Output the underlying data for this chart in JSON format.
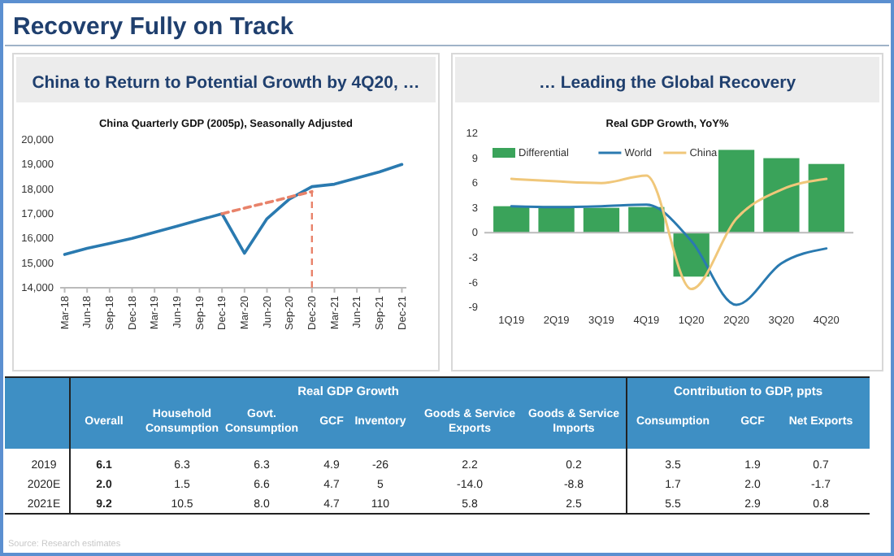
{
  "chart_data": [
    {
      "type": "line",
      "subtitle": "China to Return to Potential  Growth by 4Q20, …",
      "title": "China Quarterly GDP (2005p), Seasonally Adjusted",
      "annotations": [
        "Recovery Fully on Track"
      ],
      "categories": [
        "Mar-18",
        "Jun-18",
        "Sep-18",
        "Dec-18",
        "Mar-19",
        "Jun-19",
        "Sep-19",
        "Dec-19",
        "Mar-20",
        "Jun-20",
        "Sep-20",
        "Dec-20",
        "Mar-21",
        "Jun-21",
        "Sep-21",
        "Dec-21"
      ],
      "series": [
        {
          "color": "#2a7ab0",
          "values": [
            15350,
            15600,
            15800,
            16000,
            16250,
            16500,
            16750,
            17000,
            15400,
            16800,
            17600,
            18100,
            18200,
            18450,
            18700,
            19000
          ]
        },
        {
          "color": "#e8826a",
          "line_style": "dashed",
          "values": [
            null,
            null,
            null,
            null,
            null,
            null,
            null,
            17000,
            17230,
            17450,
            17680,
            17900,
            null,
            null,
            null,
            null
          ]
        }
      ],
      "ylim": [
        14000,
        20000
      ],
      "yticks": [
        {
          "value": 14000,
          "label": "14,000"
        },
        {
          "value": 15000,
          "label": "15,000"
        },
        {
          "value": 16000,
          "label": "16,000"
        },
        {
          "value": 17000,
          "label": "17,000"
        },
        {
          "value": 18000,
          "label": "18,000"
        },
        {
          "value": 19000,
          "label": "19,000"
        },
        {
          "value": 20000,
          "label": "20,000"
        }
      ],
      "ref_lines": [
        {
          "axis": "x",
          "value": "Dec-20",
          "color": "#e8826a",
          "line_style": "dashed"
        }
      ]
    },
    {
      "type": "bar",
      "subtitle": "… Leading the Global Recovery",
      "title": "Real GDP Growth, YoY%",
      "categories": [
        "1Q19",
        "2Q19",
        "3Q19",
        "4Q19",
        "1Q20",
        "2Q20",
        "3Q20",
        "4Q20"
      ],
      "series": [
        {
          "name": "Differential",
          "color": "#3aa35a",
          "values": [
            3.2,
            3.2,
            3.0,
            3.1,
            -5.3,
            10.0,
            9.0,
            8.3
          ]
        },
        {
          "name": "World",
          "type": "line",
          "color": "#2a7ab0",
          "values": [
            3.2,
            3.1,
            3.2,
            3.4,
            -1.0,
            -8.7,
            -3.7,
            -1.9
          ]
        },
        {
          "name": "China",
          "type": "line",
          "color": "#f0c77a",
          "values": [
            6.5,
            6.2,
            6.0,
            6.9,
            -6.8,
            1.7,
            5.2,
            6.5
          ]
        }
      ],
      "ylim": [
        -9,
        12
      ],
      "yticks": [
        -9,
        -6,
        -3,
        0,
        3,
        6,
        9,
        12
      ],
      "legend": "top left"
    },
    {
      "type": "other",
      "categories": [
        "Overall",
        "Household Consumption",
        "Govt. Consumption",
        "GCF",
        "Inventory",
        "Goods & Service Exports",
        "Goods & Service Imports",
        "Consumption",
        "GCF",
        "Net Exports"
      ],
      "y_categories": [
        "2019",
        "2020E",
        "2021E"
      ],
      "cell_labels": [
        [
          "6.1",
          "6.3",
          "6.3",
          "4.9",
          "-26",
          "2.2",
          "0.2",
          "3.5",
          "1.9",
          "0.7"
        ],
        [
          "2.0",
          "1.5",
          "6.6",
          "4.7",
          "5",
          "-14.0",
          "-8.8",
          "1.7",
          "2.0",
          "-1.7"
        ],
        [
          "9.2",
          "10.5",
          "8.0",
          "4.7",
          "110",
          "5.8",
          "2.5",
          "5.5",
          "2.9",
          "0.8"
        ]
      ],
      "annotations": [
        "Real GDP Growth",
        "Contribution to GDP, ppts",
        "Source: Research estimates"
      ]
    }
  ]
}
